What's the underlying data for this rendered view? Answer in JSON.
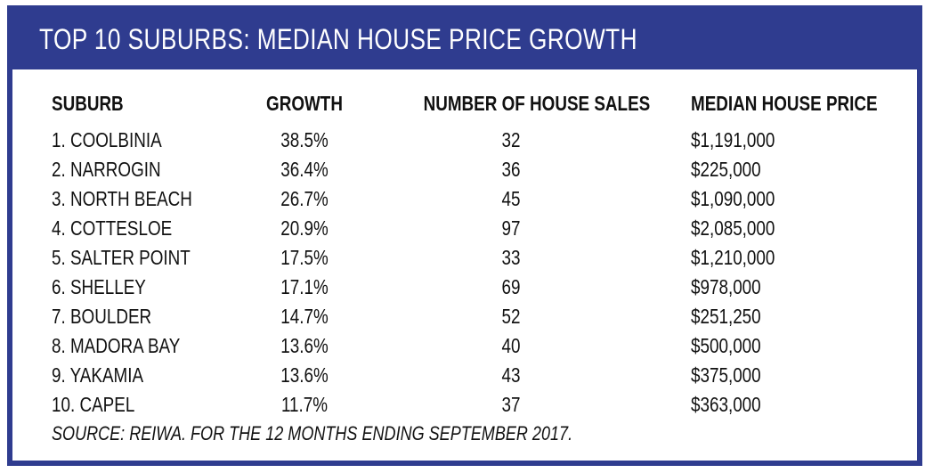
{
  "title": "TOP 10 SUBURBS: MEDIAN HOUSE PRICE GROWTH",
  "table": {
    "headers": [
      "SUBURB",
      "GROWTH",
      "NUMBER OF HOUSE SALES",
      "MEDIAN HOUSE PRICE"
    ],
    "rows": [
      [
        "1. COOLBINIA",
        "38.5%",
        "32",
        "$1,191,000"
      ],
      [
        "2. NARROGIN",
        "36.4%",
        "36",
        "$225,000"
      ],
      [
        "3. NORTH BEACH",
        "26.7%",
        "45",
        "$1,090,000"
      ],
      [
        "4. COTTESLOE",
        "20.9%",
        "97",
        "$2,085,000"
      ],
      [
        "5. SALTER POINT",
        "17.5%",
        "33",
        "$1,210,000"
      ],
      [
        "6. SHELLEY",
        "17.1%",
        "69",
        "$978,000"
      ],
      [
        "7. BOULDER",
        "14.7%",
        "52",
        "$251,250"
      ],
      [
        "8. MADORA BAY",
        "13.6%",
        "40",
        "$500,000"
      ],
      [
        "9. YAKAMIA",
        "13.6%",
        "43",
        "$375,000"
      ],
      [
        "10. CAPEL",
        "11.7%",
        "37",
        "$363,000"
      ]
    ]
  },
  "source": "SOURCE: REIWA. FOR THE 12 MONTHS ENDING SEPTEMBER 2017.",
  "colors": {
    "frame": "#2f3c8f",
    "title_text": "#ffffff",
    "body_text": "#111111"
  }
}
